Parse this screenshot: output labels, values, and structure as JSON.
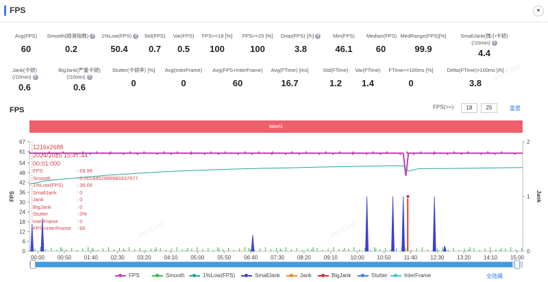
{
  "header": {
    "title": "FPS",
    "collapse_icon": "chevron-down-icon"
  },
  "stats_row1": [
    {
      "label": "Avg(FPS)",
      "value": "60",
      "help": false
    },
    {
      "label": "Smooth(顺滑指数)",
      "value": "0.2",
      "help": true
    },
    {
      "label": "1%Low(FPS)",
      "value": "50.4",
      "help": true
    },
    {
      "label": "Std(FPS)",
      "value": "0.7",
      "help": false
    },
    {
      "label": "Var(FPS)",
      "value": "0.5",
      "help": false
    },
    {
      "label": "FPS>=18 [%]",
      "value": "100",
      "help": false
    },
    {
      "label": "FPS>=25 [%]",
      "value": "100",
      "help": false
    },
    {
      "label": "Drop(FPS) [/h]",
      "value": "3.8",
      "help": true
    },
    {
      "label": "Min(FPS)",
      "value": "46.1",
      "help": false
    },
    {
      "label": "Median(FPS)",
      "value": "60",
      "help": false
    },
    {
      "label": "MedRange(FPS)[%]",
      "value": "99.9",
      "help": false
    },
    {
      "label": "SmallJank(微小卡顿)",
      "label2": "(/10min)",
      "value": "4.4",
      "help": true
    }
  ],
  "stats_row2": [
    {
      "label": "Jank(卡顿)",
      "label2": "(/10min)",
      "value": "0.6",
      "help": true
    },
    {
      "label": "BigJank(严重卡顿)",
      "label2": "(/10min)",
      "value": "0.6",
      "help": true
    },
    {
      "label": "Stutter(卡顿率) [%]",
      "value": "0",
      "help": false
    },
    {
      "label": "Avg(InterFrame)",
      "value": "0",
      "help": false
    },
    {
      "label": "Avg(FPS+InterFrame)",
      "value": "60",
      "help": false
    },
    {
      "label": "Avg(FTime) [ms]",
      "value": "16.7",
      "help": false
    },
    {
      "label": "Std(FTime)",
      "value": "1.2",
      "help": false
    },
    {
      "label": "Var(FTime)",
      "value": "1.4",
      "help": false
    },
    {
      "label": "FTime>=100ms [%]",
      "value": "0",
      "help": false
    },
    {
      "label": "Delta(FTime)>100ms [/h]",
      "value": "3.8",
      "help": false
    }
  ],
  "chart_controls": {
    "section_title": "FPS",
    "fps_ge_label": "FPS(>=)",
    "fps_threshold_1": "18",
    "fps_threshold_2": "25",
    "reset_label": "重置"
  },
  "label_band": "label1",
  "tooltip": {
    "resolution": "1216x2688",
    "datetime": "2024/2025 15:47:44",
    "elapsed": "00:01:000",
    "rows": [
      {
        "k": "FPS",
        "v": "59.99"
      },
      {
        "k": "Smooth",
        "v": "0.0014452988980337977"
      },
      {
        "k": "1%Low(FPS)",
        "v": "36.05"
      },
      {
        "k": "SmallJank",
        "v": "0"
      },
      {
        "k": "Jank",
        "v": "0"
      },
      {
        "k": "BigJank",
        "v": "0"
      },
      {
        "k": "Stutter",
        "v": "0%"
      },
      {
        "k": "InterFrame",
        "v": "0"
      },
      {
        "k": "FPS+InterFrame",
        "v": "60"
      }
    ]
  },
  "watermark": "PerfDog",
  "colors": {
    "FPS": "#c43fb6",
    "Smooth": "#3ab54a",
    "1%Low(FPS)": "#1fa89a",
    "SmallJank": "#3b3fd6",
    "Jank": "#f08a1c",
    "BigJank": "#d92c2c",
    "Stutter": "#3d7ff2",
    "InterFrame": "#43c6c6"
  },
  "legend": {
    "items": [
      "FPS",
      "Smooth",
      "1%Low(FPS)",
      "SmallJank",
      "Jank",
      "BigJank",
      "Stutter",
      "InterFrame"
    ],
    "hide_all": "全隐藏"
  },
  "chart_data": {
    "type": "line",
    "ylabel_left": "FPS",
    "ylabel_right": "Jank",
    "y_ticks_left": [
      0,
      6,
      12,
      18,
      24,
      30,
      36,
      42,
      48,
      54,
      61,
      67
    ],
    "y_ticks_right": [
      0,
      1,
      2
    ],
    "ylim_left": [
      0,
      67
    ],
    "ylim_right": [
      0,
      2
    ],
    "x_ticks": [
      "00:00",
      "00:50",
      "01:40",
      "02:30",
      "03:20",
      "04:10",
      "05:00",
      "05:50",
      "06:40",
      "07:30",
      "08:20",
      "09:10",
      "10:00",
      "10:50",
      "11:40",
      "12:30",
      "13:20",
      "14:10",
      "15:00"
    ],
    "x_range_seconds": [
      0,
      950
    ],
    "series": [
      {
        "name": "FPS",
        "axis": "left",
        "points": [
          [
            0,
            60
          ],
          [
            60,
            60
          ],
          [
            120,
            60
          ],
          [
            200,
            60
          ],
          [
            300,
            60
          ],
          [
            400,
            60
          ],
          [
            500,
            60
          ],
          [
            600,
            60
          ],
          [
            700,
            60
          ],
          [
            720,
            60
          ],
          [
            725,
            46.1
          ],
          [
            730,
            60
          ],
          [
            800,
            60
          ],
          [
            900,
            60
          ],
          [
            950,
            60
          ]
        ]
      },
      {
        "name": "1%Low(FPS)",
        "axis": "left",
        "points": [
          [
            0,
            41
          ],
          [
            30,
            43
          ],
          [
            60,
            44
          ],
          [
            100,
            45
          ],
          [
            150,
            46.5
          ],
          [
            200,
            47.5
          ],
          [
            250,
            48.5
          ],
          [
            300,
            49.2
          ],
          [
            350,
            49.8
          ],
          [
            400,
            50.3
          ],
          [
            450,
            50.7
          ],
          [
            500,
            51
          ],
          [
            550,
            51.4
          ],
          [
            600,
            51.7
          ],
          [
            650,
            52
          ],
          [
            700,
            52.3
          ],
          [
            720,
            52.2
          ],
          [
            730,
            49
          ],
          [
            750,
            50.5
          ],
          [
            800,
            50.6
          ],
          [
            850,
            50.8
          ],
          [
            900,
            51
          ],
          [
            950,
            51.2
          ]
        ]
      },
      {
        "name": "SmallJank",
        "axis": "right",
        "points": [
          [
            5,
            0.5
          ],
          [
            25,
            0.6
          ],
          [
            430,
            0.3
          ],
          [
            650,
            1
          ],
          [
            700,
            1
          ],
          [
            720,
            1
          ],
          [
            780,
            1
          ],
          [
            800,
            0.1
          ]
        ]
      },
      {
        "name": "Jank",
        "axis": "right",
        "points": [
          [
            728,
            1
          ]
        ]
      },
      {
        "name": "BigJank",
        "axis": "right",
        "points": [
          [
            729,
            1
          ]
        ]
      },
      {
        "name": "Smooth",
        "axis": "right",
        "points": []
      },
      {
        "name": "Stutter",
        "axis": "right",
        "points": []
      },
      {
        "name": "InterFrame",
        "axis": "right",
        "points": []
      }
    ]
  }
}
